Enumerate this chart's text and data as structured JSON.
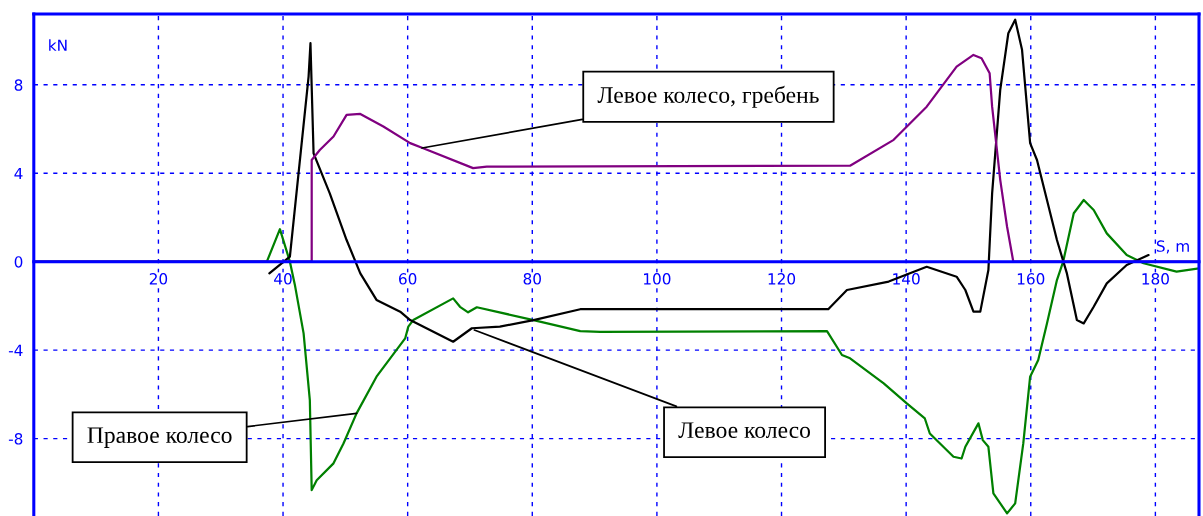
{
  "chart_data": {
    "type": "line",
    "xlabel": "S, m",
    "ylabel": "kN",
    "xlim": [
      0,
      187
    ],
    "ylim": [
      -11.5,
      11.2
    ],
    "xticks": [
      20,
      40,
      60,
      80,
      100,
      120,
      140,
      160,
      180
    ],
    "yticks": [
      -8,
      -4,
      0,
      4,
      8
    ],
    "grid": true,
    "legend": false,
    "marker": "none",
    "line_style": "solid",
    "series": [
      {
        "color": "#008000",
        "x": [
          0,
          37.4,
          39.5,
          41.1,
          41.9,
          43.3,
          44.3,
          44.6,
          45.4,
          48.1,
          49.7,
          51.8,
          55.0,
          59.6,
          60.1,
          60.9,
          67.3,
          68.4,
          69.7,
          71.1,
          80.2,
          87.7,
          90.9,
          127.3,
          129.7,
          131.0,
          136.4,
          140.1,
          143.0,
          143.8,
          147.6,
          148.9,
          149.5,
          151.6,
          152.3,
          153.2,
          154.0,
          156.2,
          157.5,
          158.8,
          159.9,
          161.2,
          162.6,
          164.2,
          165.2,
          166.9,
          168.5,
          170.1,
          172.2,
          175.4,
          178.1,
          183.4,
          187
        ],
        "values": [
          0,
          0,
          1.47,
          0,
          -1.05,
          -3.24,
          -6.26,
          -10.33,
          -9.88,
          -9.12,
          -8.22,
          -6.86,
          -5.2,
          -3.47,
          -2.94,
          -2.64,
          -1.66,
          -2.04,
          -2.29,
          -2.06,
          -2.64,
          -3.14,
          -3.17,
          -3.14,
          -4.22,
          -4.37,
          -5.5,
          -6.41,
          -7.09,
          -7.77,
          -8.82,
          -8.9,
          -8.37,
          -7.31,
          -8.07,
          -8.37,
          -10.48,
          -11.38,
          -10.93,
          -8.22,
          -5.2,
          -4.45,
          -2.79,
          -0.83,
          0,
          2.19,
          2.79,
          2.34,
          1.28,
          0.3,
          -0.07,
          -0.45,
          -0.3
        ]
      },
      {
        "color": "#000000",
        "x": [
          37.8,
          41.1,
          44.1,
          44.4,
          44.9,
          47.5,
          50.2,
          52.4,
          55.0,
          58.8,
          60.4,
          67.3,
          70.3,
          74.8,
          80.2,
          87.7,
          127.5,
          130.5,
          137.2,
          143.3,
          148.1,
          149.5,
          150.8,
          151.9,
          153.2,
          153.8,
          155.1,
          156.4,
          157.5,
          158.6,
          159.9,
          161.0,
          162.6,
          164.2,
          165.8,
          167.4,
          168.5,
          170.1,
          172.2,
          175.4,
          178.9
        ],
        "values": [
          -0.53,
          0.23,
          8.37,
          9.88,
          4.9,
          3.09,
          0.98,
          -0.53,
          -1.73,
          -2.26,
          -2.64,
          -3.62,
          -3.01,
          -2.94,
          -2.64,
          -2.15,
          -2.15,
          -1.28,
          -0.9,
          -0.23,
          -0.68,
          -1.28,
          -2.26,
          -2.26,
          -0.38,
          3.09,
          7.77,
          10.33,
          10.94,
          9.58,
          5.36,
          4.6,
          2.79,
          0.98,
          -0.53,
          -2.64,
          -2.79,
          -2.04,
          -0.98,
          -0.15,
          0.3
        ]
      },
      {
        "color": "#800080",
        "x": [
          0,
          44.6,
          44.6,
          45.9,
          48.1,
          50.2,
          52.4,
          56.1,
          60.4,
          62.5,
          70.5,
          72.7,
          131.0,
          138.0,
          143.3,
          148.1,
          150.8,
          152.1,
          153.4,
          153.8,
          155.1,
          156.2,
          157.2,
          187
        ],
        "values": [
          0,
          0,
          4.6,
          5.05,
          5.66,
          6.64,
          6.68,
          6.11,
          5.36,
          5.13,
          4.23,
          4.3,
          4.34,
          5.51,
          7.01,
          8.82,
          9.35,
          9.2,
          8.52,
          7.01,
          3.7,
          1.58,
          0,
          0
        ]
      }
    ],
    "annotations": [
      {
        "text": "Левое колесо, гребень",
        "x": 62.3,
        "y": 5.14
      },
      {
        "text": "Правое колесо",
        "x": 51.8,
        "y": -6.86
      },
      {
        "text": "Левое колесо",
        "x": 70.7,
        "y": -3.09
      }
    ]
  }
}
